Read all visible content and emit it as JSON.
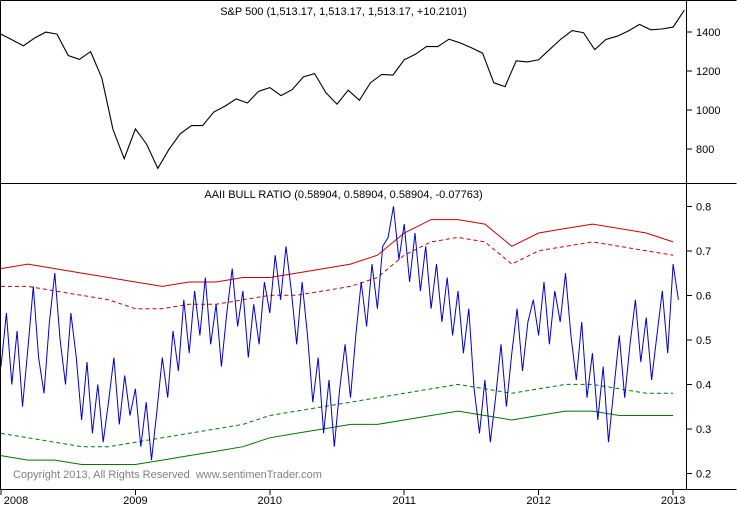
{
  "footer": {
    "copyright": "Copyright 2013, All Rights Reserved  www.sentimenTrader.com"
  },
  "chart_data": [
    {
      "type": "line",
      "title": "S&P 500 (1,513.17, 1,513.17, 1,513.17, +10.2101)",
      "panel": "top",
      "xlabel": "",
      "ylabel": "",
      "xlim": [
        2008,
        2013.1
      ],
      "ylim": [
        620,
        1560
      ],
      "yticks": [
        800,
        1000,
        1200,
        1400
      ],
      "xticks": [
        2008,
        2009,
        2010,
        2011,
        2012,
        2013
      ],
      "grid": false,
      "legend": "none",
      "series": [
        {
          "name": "sp500-price",
          "color": "#000000",
          "width": 1.1,
          "x_start": 2008.0,
          "x_step": 0.0833333,
          "values": [
            1390,
            1360,
            1330,
            1370,
            1400,
            1390,
            1280,
            1260,
            1300,
            1165,
            900,
            750,
            903,
            825,
            700,
            798,
            878,
            920,
            920,
            990,
            1020,
            1057,
            1036,
            1096,
            1115,
            1074,
            1105,
            1170,
            1187,
            1090,
            1030,
            1102,
            1050,
            1141,
            1183,
            1180,
            1258,
            1286,
            1327,
            1326,
            1364,
            1345,
            1320,
            1292,
            1140,
            1120,
            1253,
            1247,
            1258,
            1312,
            1365,
            1408,
            1397,
            1310,
            1362,
            1379,
            1406,
            1440,
            1412,
            1416,
            1426,
            1513
          ]
        }
      ]
    },
    {
      "type": "line",
      "title": "AAII BULL RATIO (0.58904, 0.58904, 0.58904, -0.07763)",
      "panel": "bottom",
      "xlabel": "",
      "ylabel": "",
      "xlim": [
        2008,
        2013.1
      ],
      "ylim": [
        0.165,
        0.85
      ],
      "yticks": [
        0.2,
        0.3,
        0.4,
        0.5,
        0.6,
        0.7,
        0.8
      ],
      "xticks": [
        2008,
        2009,
        2010,
        2011,
        2012,
        2013
      ],
      "grid": false,
      "legend": "none",
      "series": [
        {
          "name": "upper-band-solid",
          "color": "#cc0000",
          "width": 1,
          "x_start": 2008.0,
          "x_step": 0.2,
          "values": [
            0.66,
            0.67,
            0.66,
            0.65,
            0.64,
            0.63,
            0.62,
            0.63,
            0.63,
            0.64,
            0.64,
            0.65,
            0.66,
            0.67,
            0.69,
            0.74,
            0.77,
            0.77,
            0.76,
            0.71,
            0.74,
            0.75,
            0.76,
            0.75,
            0.74,
            0.72
          ]
        },
        {
          "name": "upper-band-dashed",
          "color": "#cc0000",
          "width": 1,
          "dash": "4 3",
          "x_start": 2008.0,
          "x_step": 0.2,
          "values": [
            0.62,
            0.62,
            0.61,
            0.6,
            0.59,
            0.57,
            0.57,
            0.58,
            0.58,
            0.59,
            0.6,
            0.6,
            0.61,
            0.62,
            0.64,
            0.69,
            0.72,
            0.73,
            0.72,
            0.67,
            0.7,
            0.71,
            0.72,
            0.71,
            0.7,
            0.69
          ]
        },
        {
          "name": "lower-band-dashed",
          "color": "#007700",
          "width": 1,
          "dash": "4 3",
          "x_start": 2008.0,
          "x_step": 0.2,
          "values": [
            0.29,
            0.28,
            0.27,
            0.26,
            0.26,
            0.27,
            0.28,
            0.29,
            0.3,
            0.31,
            0.33,
            0.34,
            0.35,
            0.36,
            0.37,
            0.38,
            0.39,
            0.4,
            0.39,
            0.38,
            0.39,
            0.4,
            0.4,
            0.39,
            0.38,
            0.38
          ]
        },
        {
          "name": "lower-band-solid",
          "color": "#007700",
          "width": 1,
          "x_start": 2008.0,
          "x_step": 0.2,
          "values": [
            0.24,
            0.23,
            0.23,
            0.22,
            0.22,
            0.22,
            0.23,
            0.24,
            0.25,
            0.26,
            0.28,
            0.29,
            0.3,
            0.31,
            0.31,
            0.32,
            0.33,
            0.34,
            0.33,
            0.32,
            0.33,
            0.34,
            0.34,
            0.33,
            0.33,
            0.33
          ]
        },
        {
          "name": "aaii-bull-ratio",
          "color": "#0000cc",
          "width": 1,
          "x_start": 2008.0,
          "x_step": 0.04,
          "values": [
            0.44,
            0.56,
            0.4,
            0.52,
            0.35,
            0.48,
            0.62,
            0.46,
            0.38,
            0.54,
            0.65,
            0.5,
            0.4,
            0.56,
            0.46,
            0.32,
            0.45,
            0.29,
            0.4,
            0.27,
            0.36,
            0.46,
            0.31,
            0.42,
            0.33,
            0.39,
            0.26,
            0.36,
            0.23,
            0.34,
            0.46,
            0.37,
            0.52,
            0.43,
            0.59,
            0.47,
            0.61,
            0.51,
            0.64,
            0.49,
            0.58,
            0.44,
            0.56,
            0.66,
            0.53,
            0.61,
            0.46,
            0.58,
            0.49,
            0.63,
            0.56,
            0.69,
            0.59,
            0.71,
            0.61,
            0.49,
            0.63,
            0.51,
            0.36,
            0.46,
            0.29,
            0.41,
            0.26,
            0.39,
            0.49,
            0.37,
            0.51,
            0.63,
            0.53,
            0.67,
            0.57,
            0.71,
            0.73,
            0.8,
            0.68,
            0.76,
            0.63,
            0.74,
            0.61,
            0.71,
            0.57,
            0.67,
            0.54,
            0.64,
            0.51,
            0.61,
            0.47,
            0.57,
            0.39,
            0.29,
            0.41,
            0.27,
            0.37,
            0.49,
            0.35,
            0.47,
            0.57,
            0.43,
            0.54,
            0.59,
            0.51,
            0.63,
            0.49,
            0.61,
            0.54,
            0.65,
            0.51,
            0.41,
            0.54,
            0.37,
            0.47,
            0.32,
            0.44,
            0.27,
            0.39,
            0.51,
            0.37,
            0.49,
            0.59,
            0.45,
            0.55,
            0.41,
            0.51,
            0.61,
            0.47,
            0.67,
            0.59
          ]
        }
      ]
    }
  ]
}
